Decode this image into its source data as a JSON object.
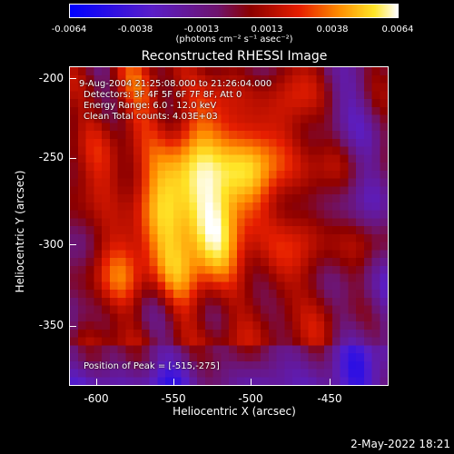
{
  "colorbar": {
    "ticks": [
      "-0.0064",
      "-0.0038",
      "-0.0013",
      "0.0013",
      "0.0038",
      "0.0064"
    ],
    "units": "(photons cm⁻² s⁻¹ asec⁻²)"
  },
  "title": "Reconstructed RHESSI Image",
  "info": {
    "time_range": "9-Aug-2004 21:25:08.000 to 21:26:04.000",
    "detectors": "Detectors: 3F 4F 5F 6F 7F 8F, Att 0",
    "energy_range": "Energy Range: 6.0 - 12.0 keV",
    "clean": "Clean    Total counts: 4.03E+03",
    "peak": "Position of Peak = [-515,-275]"
  },
  "axes": {
    "x_label": "Heliocentric X (arcsec)",
    "y_label": "Heliocentric Y (arcsec)",
    "x_ticks": [
      "-600",
      "-550",
      "-500",
      "-450"
    ],
    "y_ticks": [
      "-200",
      "-250",
      "-300",
      "-350"
    ]
  },
  "footer": {
    "date": "2-May-2022 18:21"
  }
}
